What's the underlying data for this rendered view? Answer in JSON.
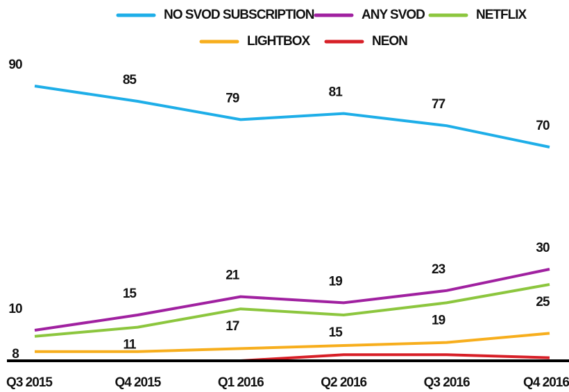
{
  "chart_data": {
    "type": "line",
    "categories": [
      "Q3 2015",
      "Q4 2015",
      "Q1 2016",
      "Q2 2016",
      "Q3 2016",
      "Q4 2016"
    ],
    "series": [
      {
        "name": "NO SVOD SUBSCRIPTION",
        "color": "#1eaee8",
        "values": [
          90,
          85,
          79,
          81,
          77,
          70
        ],
        "labels": "above"
      },
      {
        "name": "ANY SVOD",
        "color": "#a021a0",
        "values": [
          10,
          15,
          21,
          19,
          23,
          30
        ],
        "labels": "above"
      },
      {
        "name": "NETFLIX",
        "color": "#8cc63e",
        "values": [
          8,
          11,
          17,
          15,
          19,
          25
        ],
        "labels": "below"
      },
      {
        "name": "LIGHTBOX",
        "color": "#f7ae1d",
        "values": [
          3,
          3,
          4,
          5,
          6,
          9
        ]
      },
      {
        "name": "NEON",
        "color": "#d71f27",
        "values": [
          0,
          0,
          0,
          2,
          2,
          1
        ]
      }
    ],
    "ylim": [
      0,
      100
    ]
  }
}
